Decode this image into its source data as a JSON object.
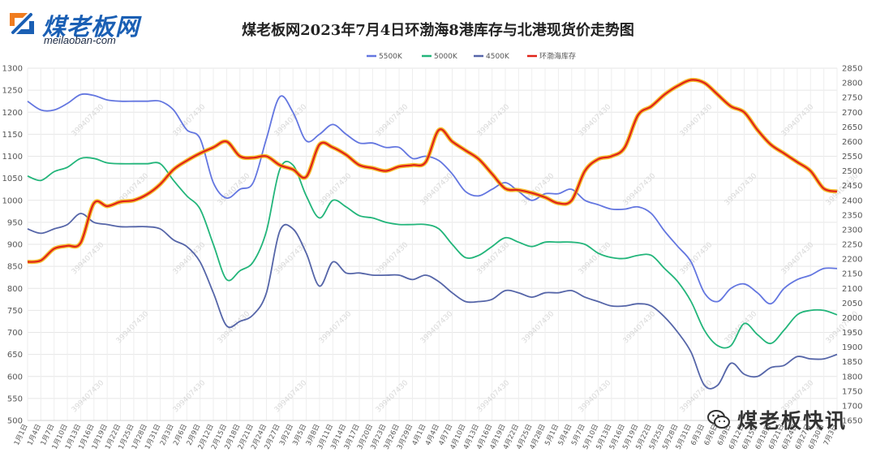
{
  "brand": {
    "logo_text": "煤老板网",
    "domain": "meilaoban-com",
    "wechat": "煤老板快讯"
  },
  "chart_data": {
    "type": "line",
    "title": "煤老板网2023年7月4日环渤海8港库存与北港现货价走势图",
    "x": [
      "1月1日",
      "1月4日",
      "1月7日",
      "1月10日",
      "1月13日",
      "1月16日",
      "1月19日",
      "1月22日",
      "1月25日",
      "1月28日",
      "1月31日",
      "2月3日",
      "2月6日",
      "2月9日",
      "2月12日",
      "2月15日",
      "2月18日",
      "2月21日",
      "2月24日",
      "2月27日",
      "3月2日",
      "3月5日",
      "3月8日",
      "3月11日",
      "3月14日",
      "3月17日",
      "3月20日",
      "3月23日",
      "3月26日",
      "3月29日",
      "4月1日",
      "4月4日",
      "4月7日",
      "4月10日",
      "4月13日",
      "4月16日",
      "4月19日",
      "4月22日",
      "4月25日",
      "4月28日",
      "5月1日",
      "5月4日",
      "5月7日",
      "5月10日",
      "5月13日",
      "5月16日",
      "5月19日",
      "5月22日",
      "5月25日",
      "5月28日",
      "5月31日",
      "6月3日",
      "6月6日",
      "6月9日",
      "6月12日",
      "6月15日",
      "6月18日",
      "6月21日",
      "6月24日",
      "6月27日",
      "6月30日",
      "7月3日"
    ],
    "y_left": {
      "min": 500,
      "max": 1300,
      "step": 50
    },
    "y_right": {
      "min": 1650,
      "max": 2850,
      "step": 50
    },
    "grid": true,
    "legend_position": "top-center",
    "series": [
      {
        "name": "5500K",
        "axis": "left",
        "color": "#6376e0",
        "values": [
          1225,
          1205,
          1205,
          1220,
          1240,
          1238,
          1228,
          1225,
          1225,
          1225,
          1225,
          1205,
          1160,
          1140,
          1040,
          1005,
          1025,
          1040,
          1140,
          1235,
          1200,
          1135,
          1150,
          1172,
          1150,
          1130,
          1130,
          1120,
          1120,
          1095,
          1100,
          1090,
          1060,
          1020,
          1010,
          1025,
          1040,
          1020,
          1000,
          1015,
          1015,
          1025,
          1000,
          990,
          980,
          980,
          985,
          970,
          930,
          895,
          860,
          790,
          770,
          800,
          810,
          790,
          765,
          800,
          820,
          830,
          845,
          845
        ]
      },
      {
        "name": "5000K",
        "axis": "left",
        "color": "#22b57a",
        "values": [
          1055,
          1045,
          1065,
          1075,
          1095,
          1095,
          1085,
          1083,
          1083,
          1083,
          1083,
          1045,
          1010,
          980,
          900,
          820,
          840,
          860,
          930,
          1070,
          1080,
          1010,
          960,
          1000,
          985,
          965,
          960,
          950,
          945,
          945,
          945,
          935,
          900,
          870,
          875,
          895,
          915,
          905,
          895,
          905,
          905,
          905,
          900,
          880,
          870,
          868,
          875,
          875,
          845,
          815,
          770,
          705,
          670,
          670,
          720,
          695,
          675,
          705,
          740,
          750,
          750,
          740
        ]
      },
      {
        "name": "4500K",
        "axis": "left",
        "color": "#5565a8",
        "values": [
          935,
          925,
          935,
          945,
          970,
          950,
          945,
          940,
          940,
          940,
          935,
          910,
          895,
          860,
          790,
          715,
          725,
          740,
          790,
          930,
          935,
          880,
          805,
          860,
          835,
          835,
          830,
          830,
          830,
          820,
          830,
          815,
          790,
          770,
          770,
          775,
          795,
          790,
          780,
          790,
          790,
          795,
          780,
          770,
          760,
          760,
          765,
          760,
          735,
          700,
          655,
          580,
          580,
          630,
          605,
          600,
          620,
          625,
          645,
          640,
          640,
          650
        ]
      },
      {
        "name": "环渤海库存",
        "axis": "right",
        "color": "#e02318",
        "values": [
          2190,
          2195,
          2235,
          2245,
          2255,
          2390,
          2380,
          2395,
          2400,
          2420,
          2455,
          2505,
          2535,
          2560,
          2580,
          2600,
          2550,
          2545,
          2550,
          2520,
          2505,
          2480,
          2590,
          2580,
          2555,
          2520,
          2510,
          2500,
          2515,
          2520,
          2530,
          2640,
          2600,
          2570,
          2540,
          2490,
          2440,
          2435,
          2425,
          2410,
          2390,
          2400,
          2500,
          2540,
          2550,
          2580,
          2690,
          2720,
          2760,
          2790,
          2810,
          2800,
          2760,
          2720,
          2700,
          2640,
          2590,
          2560,
          2530,
          2500,
          2440,
          2430
        ]
      }
    ]
  },
  "watermark": "399407430"
}
